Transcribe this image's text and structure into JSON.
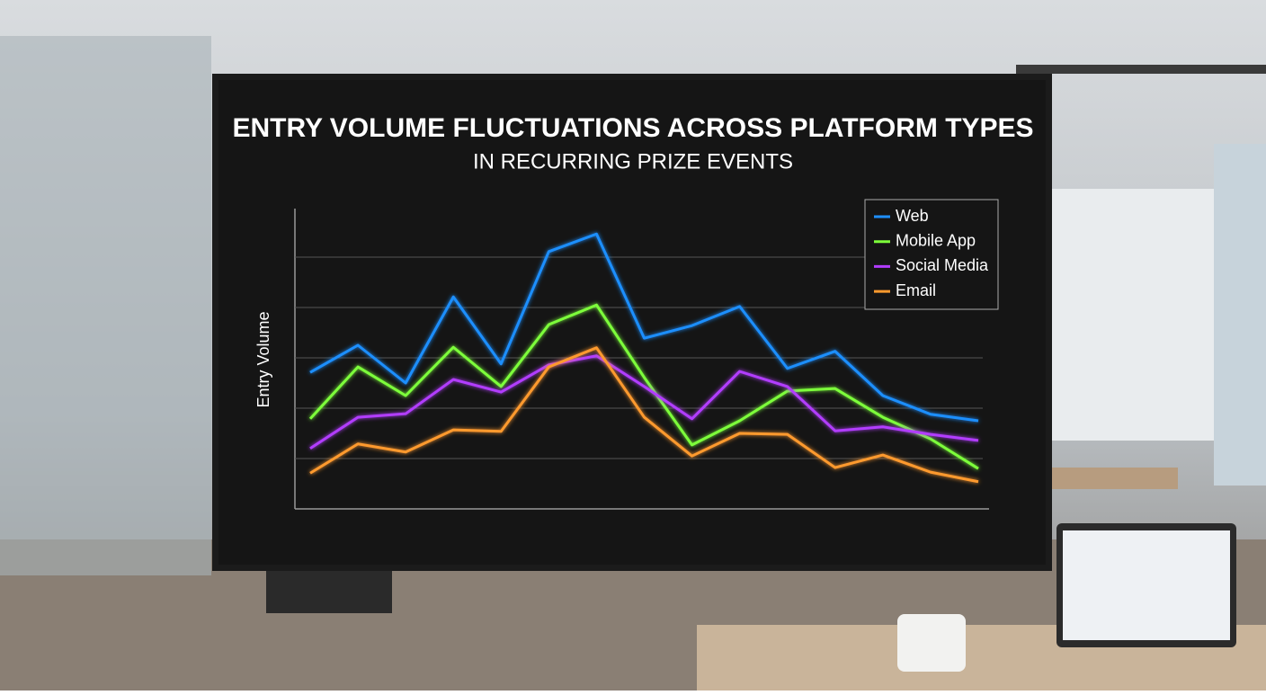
{
  "chart_data": {
    "type": "line",
    "title": "ENTRY VOLUME FLUCTUATIONS ACROSS PLATFORM TYPES",
    "subtitle": "IN RECURRING PRIZE EVENTS",
    "y_label": "Entry Volume",
    "categories": [
      null,
      null,
      null,
      null,
      null,
      null,
      null,
      null,
      null,
      null,
      null,
      null,
      null,
      null,
      null
    ],
    "series": [
      {
        "name": "Web",
        "color": "#1e8fff",
        "values": [
          2.71,
          3.25,
          2.5,
          4.21,
          2.88,
          5.11,
          5.46,
          3.39,
          3.64,
          4.02,
          2.79,
          3.13,
          2.25,
          1.88,
          1.75
        ]
      },
      {
        "name": "Mobile App",
        "color": "#7dff3a",
        "values": [
          1.79,
          2.82,
          2.25,
          3.21,
          2.43,
          3.66,
          4.05,
          2.61,
          1.27,
          1.75,
          2.34,
          2.39,
          1.82,
          1.39,
          0.8
        ]
      },
      {
        "name": "Social Media",
        "color": "#b23cff",
        "values": [
          1.2,
          1.82,
          1.89,
          2.57,
          2.32,
          2.86,
          3.04,
          2.43,
          1.79,
          2.73,
          2.43,
          1.55,
          1.63,
          1.48,
          1.36
        ]
      },
      {
        "name": "Email",
        "color": "#ff9a2e",
        "values": [
          0.71,
          1.29,
          1.13,
          1.57,
          1.54,
          2.82,
          3.2,
          1.82,
          1.05,
          1.5,
          1.48,
          0.82,
          1.07,
          0.73,
          0.54
        ]
      }
    ],
    "ylim": [
      0,
      6
    ],
    "yticks": [
      1,
      2,
      3,
      4,
      5
    ],
    "grid": true,
    "legend": "upper right"
  }
}
